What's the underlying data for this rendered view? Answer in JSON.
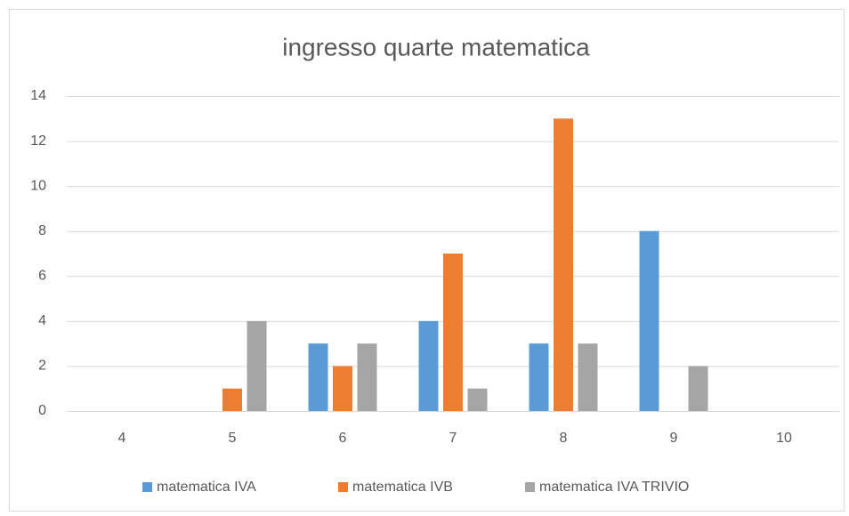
{
  "chart_data": {
    "type": "bar",
    "title": "ingresso quarte matematica",
    "categories": [
      "4",
      "5",
      "6",
      "7",
      "8",
      "9",
      "10"
    ],
    "series": [
      {
        "name": "matematica IVA",
        "color": "#5b9bd5",
        "values": [
          0,
          0,
          3,
          4,
          3,
          8,
          0
        ]
      },
      {
        "name": "matematica IVB",
        "color": "#ed7d31",
        "values": [
          0,
          1,
          2,
          7,
          13,
          0,
          0
        ]
      },
      {
        "name": "matematica IVA TRIVIO",
        "color": "#a5a5a5",
        "values": [
          0,
          4,
          3,
          1,
          3,
          2,
          0
        ]
      }
    ],
    "ylim": [
      0,
      14
    ],
    "yticks": [
      0,
      2,
      4,
      6,
      8,
      10,
      12,
      14
    ],
    "grid": true,
    "legend": "bottom"
  }
}
